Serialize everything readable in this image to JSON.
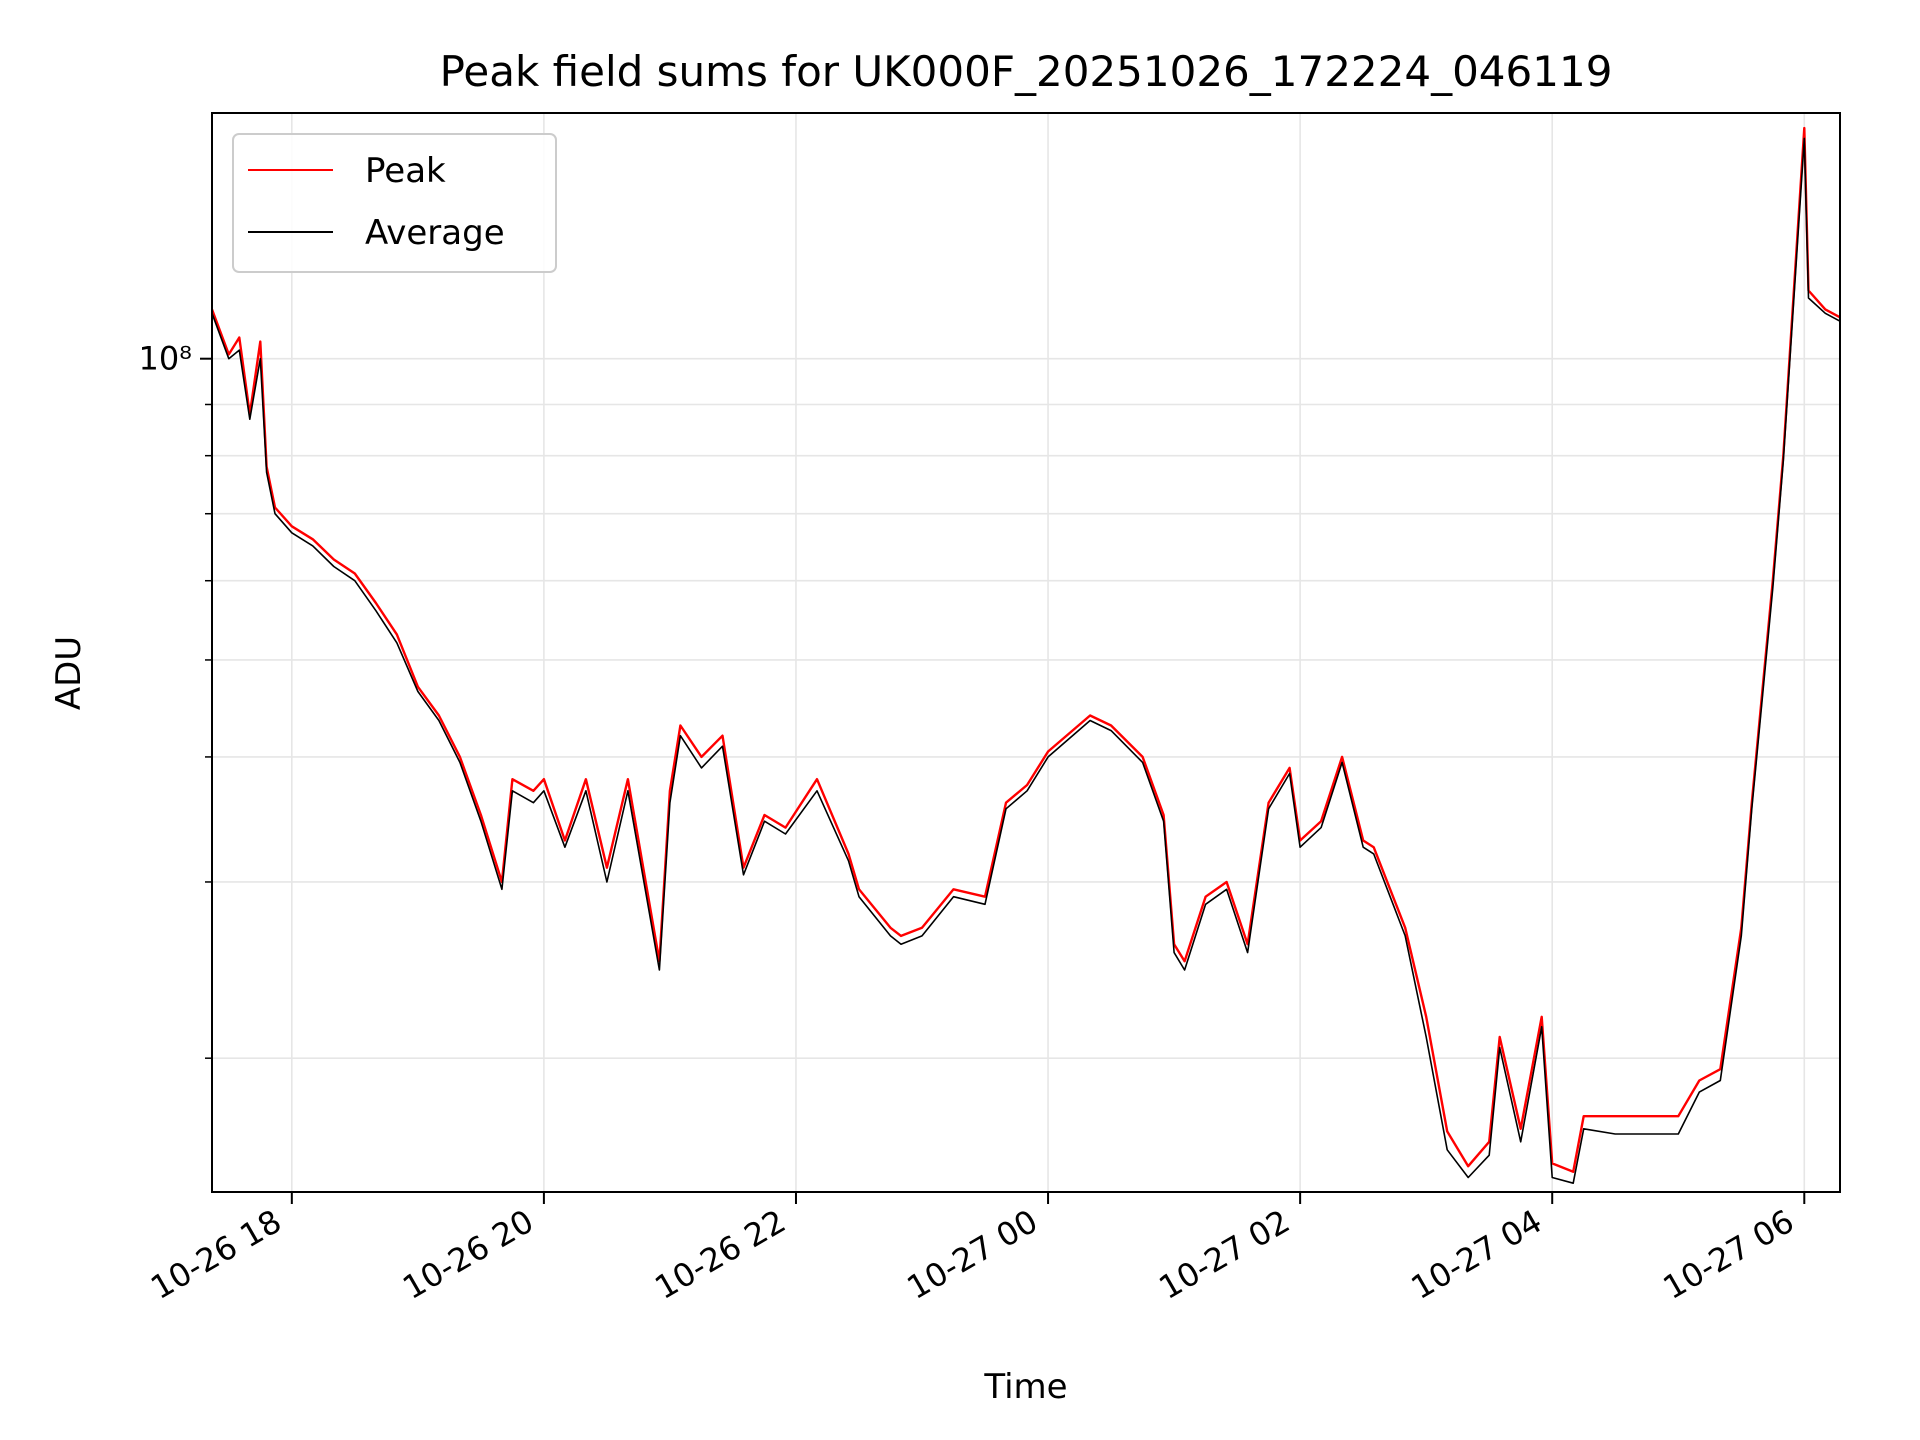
{
  "chart_data": {
    "type": "line",
    "title": "Peak field sums for UK000F_20251026_172224_046119",
    "xlabel": "Time",
    "ylabel": "ADU",
    "yscale": "log",
    "xlim": [
      "2025-10-26 17:22",
      "2025-10-27 06:17"
    ],
    "ylim": [
      14700000,
      176000000
    ],
    "x_ticks": [
      {
        "x": "2025-10-26 18:00",
        "label": "10-26 18"
      },
      {
        "x": "2025-10-26 20:00",
        "label": "10-26 20"
      },
      {
        "x": "2025-10-26 22:00",
        "label": "10-26 22"
      },
      {
        "x": "2025-10-27 00:00",
        "label": "10-27 00"
      },
      {
        "x": "2025-10-27 02:00",
        "label": "10-27 02"
      },
      {
        "x": "2025-10-27 04:00",
        "label": "10-27 04"
      },
      {
        "x": "2025-10-27 06:00",
        "label": "10-27 06"
      }
    ],
    "y_major_ticks": [
      {
        "value": 100000000,
        "label": "10⁸"
      }
    ],
    "y_minor_ticks": [
      20000000,
      30000000,
      40000000,
      50000000,
      60000000,
      70000000,
      80000000,
      90000000
    ],
    "grid": true,
    "legend_position": "top-left",
    "series": [
      {
        "name": "Peak",
        "color": "#ff0000",
        "x": [
          "2025-10-26 17:22",
          "2025-10-26 17:30",
          "2025-10-26 17:35",
          "2025-10-26 17:40",
          "2025-10-26 17:45",
          "2025-10-26 17:48",
          "2025-10-26 17:52",
          "2025-10-26 18:00",
          "2025-10-26 18:10",
          "2025-10-26 18:20",
          "2025-10-26 18:30",
          "2025-10-26 18:40",
          "2025-10-26 18:50",
          "2025-10-26 19:00",
          "2025-10-26 19:10",
          "2025-10-26 19:20",
          "2025-10-26 19:30",
          "2025-10-26 19:40",
          "2025-10-26 19:45",
          "2025-10-26 19:55",
          "2025-10-26 20:00",
          "2025-10-26 20:10",
          "2025-10-26 20:20",
          "2025-10-26 20:30",
          "2025-10-26 20:40",
          "2025-10-26 20:55",
          "2025-10-26 21:00",
          "2025-10-26 21:05",
          "2025-10-26 21:15",
          "2025-10-26 21:25",
          "2025-10-26 21:35",
          "2025-10-26 21:45",
          "2025-10-26 21:55",
          "2025-10-26 22:10",
          "2025-10-26 22:25",
          "2025-10-26 22:30",
          "2025-10-26 22:45",
          "2025-10-26 22:50",
          "2025-10-26 23:00",
          "2025-10-26 23:15",
          "2025-10-26 23:30",
          "2025-10-26 23:40",
          "2025-10-26 23:50",
          "2025-10-27 00:00",
          "2025-10-27 00:20",
          "2025-10-27 00:30",
          "2025-10-27 00:45",
          "2025-10-27 00:55",
          "2025-10-27 01:00",
          "2025-10-27 01:05",
          "2025-10-27 01:15",
          "2025-10-27 01:25",
          "2025-10-27 01:35",
          "2025-10-27 01:45",
          "2025-10-27 01:55",
          "2025-10-27 02:00",
          "2025-10-27 02:10",
          "2025-10-27 02:20",
          "2025-10-27 02:30",
          "2025-10-27 02:35",
          "2025-10-27 02:50",
          "2025-10-27 03:00",
          "2025-10-27 03:10",
          "2025-10-27 03:20",
          "2025-10-27 03:30",
          "2025-10-27 03:35",
          "2025-10-27 03:45",
          "2025-10-27 03:55",
          "2025-10-27 04:00",
          "2025-10-27 04:10",
          "2025-10-27 04:15",
          "2025-10-27 04:30",
          "2025-10-27 04:45",
          "2025-10-27 05:00",
          "2025-10-27 05:10",
          "2025-10-27 05:20",
          "2025-10-27 05:30",
          "2025-10-27 05:35",
          "2025-10-27 05:45",
          "2025-10-27 05:50",
          "2025-10-27 06:00",
          "2025-10-27 06:02",
          "2025-10-27 06:10",
          "2025-10-27 06:17"
        ],
        "y": [
          112000000,
          101000000,
          105000000,
          88000000,
          104000000,
          78000000,
          71000000,
          68000000,
          66000000,
          63000000,
          61000000,
          57000000,
          53000000,
          47000000,
          44000000,
          40000000,
          35000000,
          30000000,
          38000000,
          37000000,
          38000000,
          33000000,
          38000000,
          31000000,
          38000000,
          25000000,
          37000000,
          43000000,
          40000000,
          42000000,
          31000000,
          35000000,
          34000000,
          38000000,
          32000000,
          29500000,
          27000000,
          26500000,
          27000000,
          29500000,
          29000000,
          36000000,
          37500000,
          40500000,
          44000000,
          43000000,
          40000000,
          35000000,
          26000000,
          25000000,
          29000000,
          30000000,
          26000000,
          36000000,
          39000000,
          33000000,
          34500000,
          40000000,
          33000000,
          32500000,
          27000000,
          22000000,
          16900000,
          15600000,
          16500000,
          21000000,
          17000000,
          22000000,
          15700000,
          15400000,
          17500000,
          17500000,
          17500000,
          17500000,
          19000000,
          19500000,
          27000000,
          36000000,
          60000000,
          80000000,
          170000000,
          117000000,
          112000000,
          110000000
        ]
      },
      {
        "name": "Average",
        "color": "#000000",
        "x": [
          "2025-10-26 17:22",
          "2025-10-26 17:30",
          "2025-10-26 17:35",
          "2025-10-26 17:40",
          "2025-10-26 17:45",
          "2025-10-26 17:48",
          "2025-10-26 17:52",
          "2025-10-26 18:00",
          "2025-10-26 18:10",
          "2025-10-26 18:20",
          "2025-10-26 18:30",
          "2025-10-26 18:40",
          "2025-10-26 18:50",
          "2025-10-26 19:00",
          "2025-10-26 19:10",
          "2025-10-26 19:20",
          "2025-10-26 19:30",
          "2025-10-26 19:40",
          "2025-10-26 19:45",
          "2025-10-26 19:55",
          "2025-10-26 20:00",
          "2025-10-26 20:10",
          "2025-10-26 20:20",
          "2025-10-26 20:30",
          "2025-10-26 20:40",
          "2025-10-26 20:55",
          "2025-10-26 21:00",
          "2025-10-26 21:05",
          "2025-10-26 21:15",
          "2025-10-26 21:25",
          "2025-10-26 21:35",
          "2025-10-26 21:45",
          "2025-10-26 21:55",
          "2025-10-26 22:10",
          "2025-10-26 22:25",
          "2025-10-26 22:30",
          "2025-10-26 22:45",
          "2025-10-26 22:50",
          "2025-10-26 23:00",
          "2025-10-26 23:15",
          "2025-10-26 23:30",
          "2025-10-26 23:40",
          "2025-10-26 23:50",
          "2025-10-27 00:00",
          "2025-10-27 00:20",
          "2025-10-27 00:30",
          "2025-10-27 00:45",
          "2025-10-27 00:55",
          "2025-10-27 01:00",
          "2025-10-27 01:05",
          "2025-10-27 01:15",
          "2025-10-27 01:25",
          "2025-10-27 01:35",
          "2025-10-27 01:45",
          "2025-10-27 01:55",
          "2025-10-27 02:00",
          "2025-10-27 02:10",
          "2025-10-27 02:20",
          "2025-10-27 02:30",
          "2025-10-27 02:35",
          "2025-10-27 02:50",
          "2025-10-27 03:00",
          "2025-10-27 03:10",
          "2025-10-27 03:20",
          "2025-10-27 03:30",
          "2025-10-27 03:35",
          "2025-10-27 03:45",
          "2025-10-27 03:55",
          "2025-10-27 04:00",
          "2025-10-27 04:10",
          "2025-10-27 04:15",
          "2025-10-27 04:30",
          "2025-10-27 04:45",
          "2025-10-27 05:00",
          "2025-10-27 05:10",
          "2025-10-27 05:20",
          "2025-10-27 05:30",
          "2025-10-27 05:35",
          "2025-10-27 05:45",
          "2025-10-27 05:50",
          "2025-10-27 06:00",
          "2025-10-27 06:02",
          "2025-10-27 06:10",
          "2025-10-27 06:17"
        ],
        "y": [
          111000000,
          100000000,
          102000000,
          87000000,
          100000000,
          77000000,
          70000000,
          67000000,
          65000000,
          62000000,
          60000000,
          56000000,
          52000000,
          46500000,
          43500000,
          39500000,
          34500000,
          29500000,
          37000000,
          36000000,
          37000000,
          32500000,
          37000000,
          30000000,
          37000000,
          24500000,
          36000000,
          42000000,
          39000000,
          41000000,
          30500000,
          34500000,
          33500000,
          37000000,
          31500000,
          29000000,
          26500000,
          26000000,
          26500000,
          29000000,
          28500000,
          35500000,
          37000000,
          40000000,
          43500000,
          42500000,
          39500000,
          34500000,
          25500000,
          24500000,
          28500000,
          29500000,
          25500000,
          35500000,
          38500000,
          32500000,
          34000000,
          39500000,
          32500000,
          32000000,
          26500000,
          21000000,
          16200000,
          15200000,
          16000000,
          20500000,
          16500000,
          21500000,
          15200000,
          15000000,
          17000000,
          16800000,
          16800000,
          16800000,
          18500000,
          19000000,
          26500000,
          35500000,
          59000000,
          79000000,
          166000000,
          115000000,
          111000000,
          109000000
        ]
      }
    ]
  }
}
